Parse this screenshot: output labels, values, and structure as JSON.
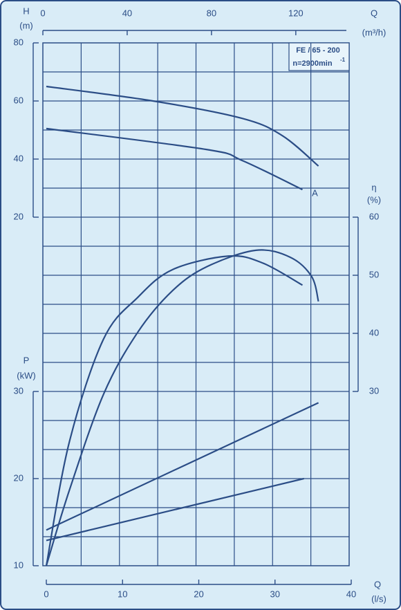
{
  "chart_data": {
    "type": "line",
    "model": "FE / 65 - 200",
    "speed": "n=2900min",
    "speed_exponent": "-1",
    "color": "#2b4d86",
    "x_label": "Q",
    "x_unit": "(l/s)",
    "xlim": [
      0,
      40
    ],
    "xticks": [
      0,
      10,
      20,
      30,
      40
    ],
    "top_axis": {
      "label": "Q",
      "unit": "(m³/h)",
      "lim": [
        0,
        144
      ],
      "ticks": [
        0,
        40,
        80,
        120
      ]
    },
    "h_axis": {
      "label": "H",
      "unit": "(m)",
      "lim": [
        20,
        80
      ],
      "ticks": [
        20,
        40,
        60,
        80
      ]
    },
    "eta_axis": {
      "label": "η",
      "unit": "(%)",
      "lim": [
        30,
        60
      ],
      "ticks": [
        30,
        40,
        50,
        60
      ]
    },
    "p_axis": {
      "label": "P",
      "unit": "(kW)",
      "lim": [
        10,
        30
      ],
      "ticks": [
        10,
        20,
        30
      ]
    },
    "grid": true,
    "series": [
      {
        "axis": "h",
        "x": [
          0,
          14,
          25.7,
          31,
          35.7
        ],
        "values": [
          65,
          60,
          54,
          48,
          37.6
        ]
      },
      {
        "name": "A",
        "axis": "h",
        "x": [
          0,
          21,
          25.7,
          33.6
        ],
        "values": [
          50.5,
          43.3,
          39.5,
          29.5
        ]
      },
      {
        "axis": "eta",
        "x": [
          0,
          3,
          7.5,
          12,
          16.6,
          23.9,
          28.4,
          33.6
        ],
        "values": [
          0,
          21.2,
          39,
          46.2,
          51,
          53.3,
          52.1,
          48.3
        ]
      },
      {
        "axis": "eta",
        "x": [
          0,
          3,
          7.5,
          12,
          16.6,
          21.1,
          27.5,
          32,
          34.8,
          35.7
        ],
        "values": [
          0,
          12.9,
          29.5,
          40.2,
          47.4,
          51.5,
          54.3,
          53.1,
          49.8,
          45.5
        ]
      },
      {
        "axis": "p",
        "x": [
          0,
          35.7
        ],
        "values": [
          14.1,
          28.7
        ]
      },
      {
        "axis": "p",
        "x": [
          0,
          33.8
        ],
        "values": [
          12.9,
          20
        ]
      }
    ]
  }
}
